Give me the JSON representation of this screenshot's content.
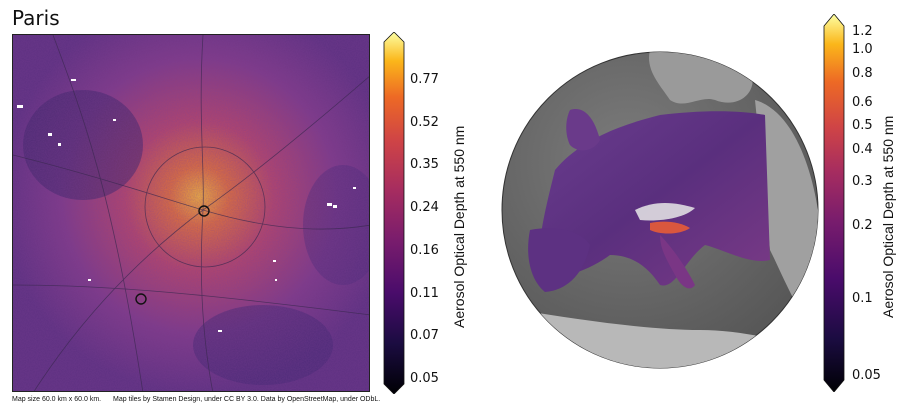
{
  "city_panel": {
    "title": "Paris",
    "footer": {
      "map_size": "Map size 60.0 km x 60.0 km.",
      "attribution": "Map tiles by Stamen Design, under CC BY 3.0. Data by OpenStreetMap, under ODbL."
    },
    "markers": [
      "site-1",
      "site-2"
    ]
  },
  "colorbar_left": {
    "label": "Aerosol Optical Depth at 550 nm",
    "ticks": [
      "0.77",
      "0.52",
      "0.35",
      "0.24",
      "0.16",
      "0.11",
      "0.07",
      "0.05"
    ],
    "colormap": "inferno"
  },
  "globe_panel": {
    "region": "Europe",
    "colormap": "inferno"
  },
  "colorbar_right": {
    "label": "Aerosol Optical Depth at 550 nm",
    "ticks": [
      "1.2",
      "1.0",
      "0.8",
      "0.6",
      "0.5",
      "0.4",
      "0.3",
      "0.2",
      "0.1",
      "0.05"
    ],
    "scale": "log",
    "colormap": "inferno"
  },
  "colors": {
    "low": "#000004",
    "mid_low": "#420a68",
    "mid": "#932667",
    "mid_high": "#dd513a",
    "high": "#fca50a",
    "top": "#fcffa4",
    "map_base": "#6d3f8a",
    "globe_land": "#8a8a8a",
    "globe_sea": "#6f6f6f"
  }
}
